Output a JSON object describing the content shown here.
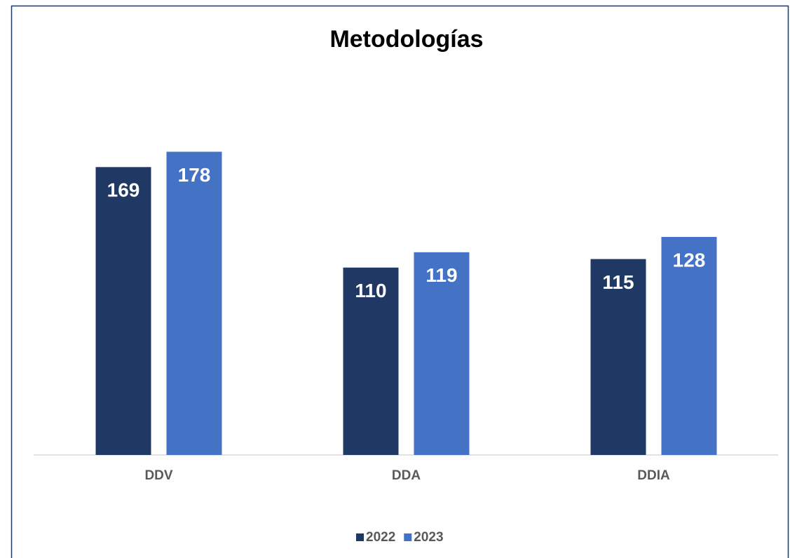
{
  "chart_data": {
    "type": "bar",
    "title": "Metodologías",
    "categories": [
      "DDV",
      "DDA",
      "DDIA"
    ],
    "series": [
      {
        "name": "2022",
        "color": "#203864",
        "values": [
          169,
          110,
          115
        ]
      },
      {
        "name": "2023",
        "color": "#4472c4",
        "values": [
          178,
          119,
          128
        ]
      }
    ],
    "legend": "bottom"
  }
}
